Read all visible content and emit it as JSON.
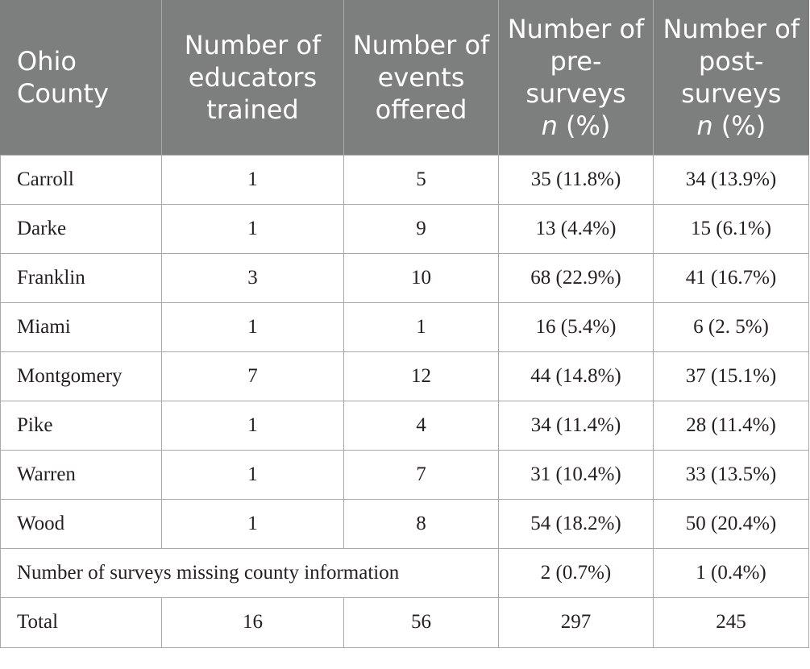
{
  "headers": {
    "county": "Ohio County",
    "educators": "Number of educators trained",
    "events": "Number of events offered",
    "pre": "Number of pre-surveys",
    "pre_stat": "(%)",
    "post": "Number of post-surveys",
    "post_stat": "(%)",
    "n": "n"
  },
  "rows": [
    {
      "county": "Carroll",
      "educators": "1",
      "events": "5",
      "pre": "35 (11.8%)",
      "post": "34 (13.9%)"
    },
    {
      "county": "Darke",
      "educators": "1",
      "events": "9",
      "pre": "13 (4.4%)",
      "post": "15 (6.1%)"
    },
    {
      "county": "Franklin",
      "educators": "3",
      "events": "10",
      "pre": "68 (22.9%)",
      "post": "41 (16.7%)"
    },
    {
      "county": "Miami",
      "educators": "1",
      "events": "1",
      "pre": "16 (5.4%)",
      "post": "6 (2. 5%)"
    },
    {
      "county": "Montgomery",
      "educators": "7",
      "events": "12",
      "pre": "44 (14.8%)",
      "post": "37 (15.1%)"
    },
    {
      "county": "Pike",
      "educators": "1",
      "events": "4",
      "pre": "34 (11.4%)",
      "post": "28 (11.4%)"
    },
    {
      "county": "Warren",
      "educators": "1",
      "events": "7",
      "pre": "31 (10.4%)",
      "post": "33 (13.5%)"
    },
    {
      "county": "Wood",
      "educators": "1",
      "events": "8",
      "pre": "54 (18.2%)",
      "post": "50 (20.4%)"
    }
  ],
  "missing": {
    "label": "Number of surveys missing county information",
    "pre": "2 (0.7%)",
    "post": "1 (0.4%)"
  },
  "total": {
    "label": "Total",
    "educators": "16",
    "events": "56",
    "pre": "297",
    "post": "245"
  }
}
